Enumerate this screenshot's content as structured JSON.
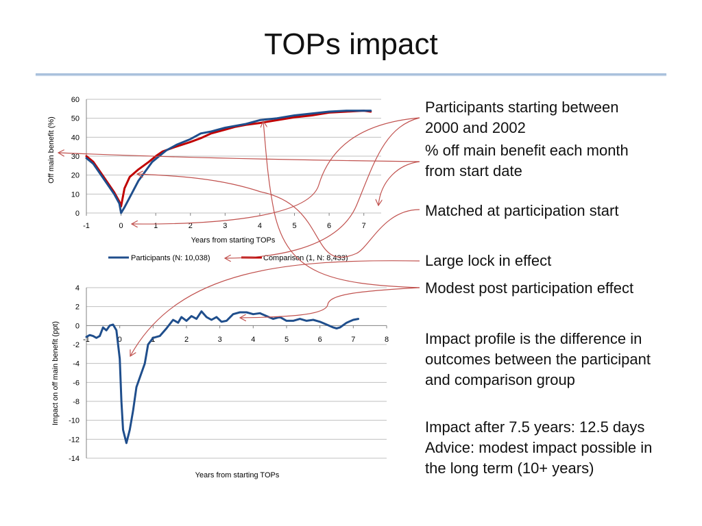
{
  "slide": {
    "title": "TOPs impact"
  },
  "notes": {
    "participants_line1": "Participants starting between",
    "participants_line2": "2000 and 2002",
    "offbenefit_line1": "% off main benefit each month",
    "offbenefit_line2": "from start date",
    "matched": "Matched at participation start",
    "lockin": "Large lock in effect",
    "modest": "Modest post participation effect",
    "profile_line1": "Impact profile is the difference in",
    "profile_line2": "outcomes between the participant",
    "profile_line3": "and comparison group",
    "impact_line1": "Impact after 7.5 years: 12.5 days",
    "impact_line2": "Advice: modest impact possible in",
    "impact_line3": "the long term (10+ years)"
  },
  "colors": {
    "participants": "#1f4e8c",
    "comparison": "#c00000",
    "arrows": "#c0504d",
    "grid": "#bfbfbf"
  },
  "chart_data": [
    {
      "type": "line",
      "xlabel": "Years from starting TOPs",
      "ylabel": "Off main benefit (%)",
      "xlim": [
        -1,
        7.5
      ],
      "ylim": [
        0,
        60
      ],
      "xticks": [
        "-1",
        "0",
        "1",
        "2",
        "3",
        "4",
        "5",
        "6",
        "7"
      ],
      "yticks": [
        "0",
        "10",
        "20",
        "30",
        "40",
        "50",
        "60"
      ],
      "grid": true,
      "legend_position": "bottom",
      "series": [
        {
          "name": "Participants (N: 10,038)",
          "points": [
            [
              -1,
              29
            ],
            [
              -0.8,
              26
            ],
            [
              -0.5,
              18
            ],
            [
              -0.2,
              10
            ],
            [
              -0.05,
              5
            ],
            [
              0,
              0
            ],
            [
              0.1,
              3
            ],
            [
              0.3,
              10
            ],
            [
              0.5,
              17
            ],
            [
              0.7,
              22
            ],
            [
              0.9,
              27
            ],
            [
              1.1,
              30
            ],
            [
              1.3,
              33
            ],
            [
              1.6,
              36
            ],
            [
              2,
              39
            ],
            [
              2.3,
              42
            ],
            [
              2.6,
              43
            ],
            [
              3,
              45
            ],
            [
              3.3,
              46
            ],
            [
              3.6,
              47
            ],
            [
              4,
              49
            ],
            [
              4.5,
              50
            ],
            [
              5,
              51.5
            ],
            [
              5.5,
              52.5
            ],
            [
              6,
              53.5
            ],
            [
              6.5,
              54
            ],
            [
              7,
              54
            ],
            [
              7.2,
              54
            ]
          ]
        },
        {
          "name": "Comparison (1, N: 8,433)",
          "points": [
            [
              -1,
              30
            ],
            [
              -0.8,
              27
            ],
            [
              -0.5,
              19
            ],
            [
              -0.2,
              11
            ],
            [
              -0.05,
              6
            ],
            [
              0,
              3.5
            ],
            [
              0.1,
              13
            ],
            [
              0.25,
              19
            ],
            [
              0.5,
              23
            ],
            [
              0.8,
              27
            ],
            [
              1,
              30
            ],
            [
              1.2,
              32.5
            ],
            [
              1.5,
              34.5
            ],
            [
              2,
              37.5
            ],
            [
              2.3,
              39.5
            ],
            [
              2.6,
              42
            ],
            [
              3,
              44
            ],
            [
              3.3,
              45.5
            ],
            [
              3.6,
              46.5
            ],
            [
              4,
              47.5
            ],
            [
              4.5,
              49
            ],
            [
              5,
              50.5
            ],
            [
              5.5,
              51.5
            ],
            [
              6,
              53
            ],
            [
              6.5,
              53.5
            ],
            [
              7,
              54
            ],
            [
              7.2,
              53.5
            ]
          ]
        }
      ]
    },
    {
      "type": "line",
      "xlabel": "Years from starting TOPs",
      "ylabel": "Impact on off main benefit (ppt)",
      "xlim": [
        -1,
        8
      ],
      "ylim": [
        -14,
        4
      ],
      "xticks": [
        "-1",
        "0",
        "1",
        "2",
        "3",
        "4",
        "5",
        "6",
        "7",
        "8"
      ],
      "yticks": [
        "4",
        "2",
        "0",
        "-2",
        "-4",
        "-6",
        "-8",
        "-10",
        "-12",
        "-14"
      ],
      "grid": true,
      "series": [
        {
          "name": "",
          "points": [
            [
              -1,
              -1.2
            ],
            [
              -0.9,
              -1
            ],
            [
              -0.8,
              -1.1
            ],
            [
              -0.7,
              -1.3
            ],
            [
              -0.6,
              -1.1
            ],
            [
              -0.5,
              -0.2
            ],
            [
              -0.4,
              -0.5
            ],
            [
              -0.3,
              0
            ],
            [
              -0.2,
              0.1
            ],
            [
              -0.1,
              -0.5
            ],
            [
              0,
              -3.5
            ],
            [
              0.05,
              -8
            ],
            [
              0.1,
              -11
            ],
            [
              0.2,
              -12.4
            ],
            [
              0.3,
              -11
            ],
            [
              0.4,
              -9
            ],
            [
              0.5,
              -6.5
            ],
            [
              0.6,
              -5.5
            ],
            [
              0.75,
              -4
            ],
            [
              0.85,
              -2
            ],
            [
              1,
              -1.3
            ],
            [
              1.2,
              -1.1
            ],
            [
              1.4,
              -0.3
            ],
            [
              1.6,
              0.6
            ],
            [
              1.75,
              0.3
            ],
            [
              1.85,
              0.9
            ],
            [
              2,
              0.5
            ],
            [
              2.15,
              1
            ],
            [
              2.3,
              0.7
            ],
            [
              2.45,
              1.5
            ],
            [
              2.6,
              0.9
            ],
            [
              2.75,
              0.6
            ],
            [
              2.9,
              0.9
            ],
            [
              3.05,
              0.4
            ],
            [
              3.2,
              0.5
            ],
            [
              3.4,
              1.2
            ],
            [
              3.6,
              1.4
            ],
            [
              3.8,
              1.4
            ],
            [
              4,
              1.2
            ],
            [
              4.2,
              1.3
            ],
            [
              4.4,
              1
            ],
            [
              4.6,
              0.7
            ],
            [
              4.8,
              0.9
            ],
            [
              5,
              0.5
            ],
            [
              5.2,
              0.5
            ],
            [
              5.4,
              0.7
            ],
            [
              5.6,
              0.5
            ],
            [
              5.8,
              0.6
            ],
            [
              6,
              0.4
            ],
            [
              6.2,
              0.1
            ],
            [
              6.4,
              -0.2
            ],
            [
              6.5,
              -0.3
            ],
            [
              6.6,
              -0.2
            ],
            [
              6.8,
              0.3
            ],
            [
              7,
              0.6
            ],
            [
              7.15,
              0.7
            ]
          ]
        }
      ]
    }
  ]
}
